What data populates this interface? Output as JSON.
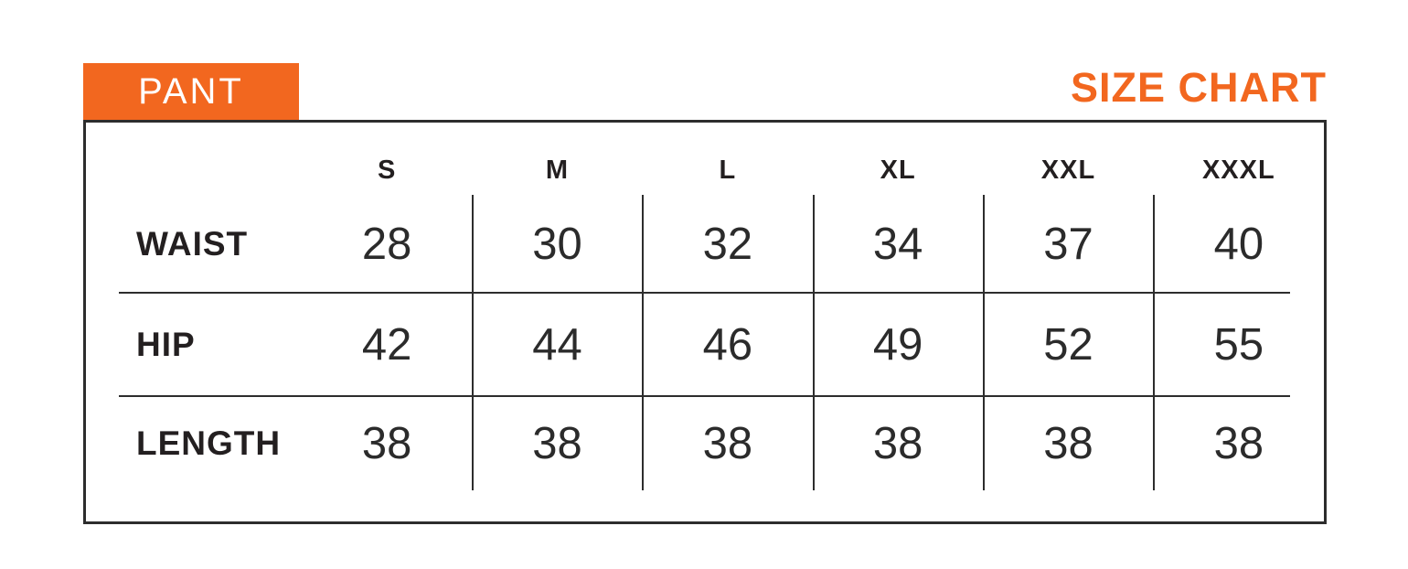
{
  "header": {
    "tab_label": "PANT",
    "title": "SIZE CHART"
  },
  "colors": {
    "accent_orange": "#F2671F",
    "text_dark": "#231F20",
    "line_dark": "#2D2D2D",
    "tab_text": "#FFFFFF"
  },
  "chart_data": {
    "type": "table",
    "title": "PANT SIZE CHART",
    "columns": [
      "S",
      "M",
      "L",
      "XL",
      "XXL",
      "XXXL"
    ],
    "rows": [
      {
        "label": "WAIST",
        "values": [
          28,
          30,
          32,
          34,
          37,
          40
        ]
      },
      {
        "label": "HIP",
        "values": [
          42,
          44,
          46,
          49,
          52,
          55
        ]
      },
      {
        "label": "LENGTH",
        "values": [
          38,
          38,
          38,
          38,
          38,
          38
        ]
      }
    ],
    "layout_hints": {
      "label_column_position": "left",
      "grid": "partial: vertical dividers between size columns, horizontal dividers between rows, both inset from outer border"
    }
  }
}
